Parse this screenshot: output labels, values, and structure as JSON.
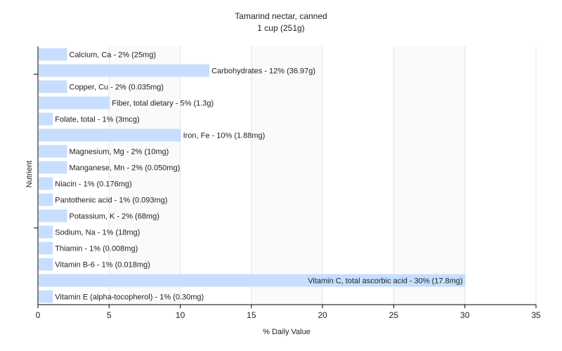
{
  "chart_data": {
    "type": "bar",
    "orientation": "horizontal",
    "title": "Tamarind nectar, canned",
    "subtitle": "1 cup (251g)",
    "xlabel": "% Daily Value",
    "ylabel": "Nutrient",
    "xlim": [
      0,
      35
    ],
    "xticks": [
      0,
      5,
      10,
      15,
      20,
      25,
      30,
      35
    ],
    "grid": true,
    "bar_color": "#c7deff",
    "bars": [
      {
        "value": 2,
        "label": "Calcium, Ca - 2% (25mg)"
      },
      {
        "value": 12,
        "label": "Carbohydrates - 12% (36.97g)"
      },
      {
        "value": 2,
        "label": "Copper, Cu - 2% (0.035mg)"
      },
      {
        "value": 5,
        "label": "Fiber, total dietary - 5% (1.3g)"
      },
      {
        "value": 1,
        "label": "Folate, total - 1% (3mcg)"
      },
      {
        "value": 10,
        "label": "Iron, Fe - 10% (1.88mg)"
      },
      {
        "value": 2,
        "label": "Magnesium, Mg - 2% (10mg)"
      },
      {
        "value": 2,
        "label": "Manganese, Mn - 2% (0.050mg)"
      },
      {
        "value": 1,
        "label": "Niacin - 1% (0.176mg)"
      },
      {
        "value": 1,
        "label": "Pantothenic acid - 1% (0.093mg)"
      },
      {
        "value": 2,
        "label": "Potassium, K - 2% (68mg)"
      },
      {
        "value": 1,
        "label": "Sodium, Na - 1% (18mg)"
      },
      {
        "value": 1,
        "label": "Thiamin - 1% (0.008mg)"
      },
      {
        "value": 1,
        "label": "Vitamin B-6 - 1% (0.018mg)"
      },
      {
        "value": 30,
        "label": "Vitamin C, total ascorbic acid - 30% (17.8mg)"
      },
      {
        "value": 1,
        "label": "Vitamin E (alpha-tocopherol) - 1% (0.30mg)"
      }
    ]
  }
}
